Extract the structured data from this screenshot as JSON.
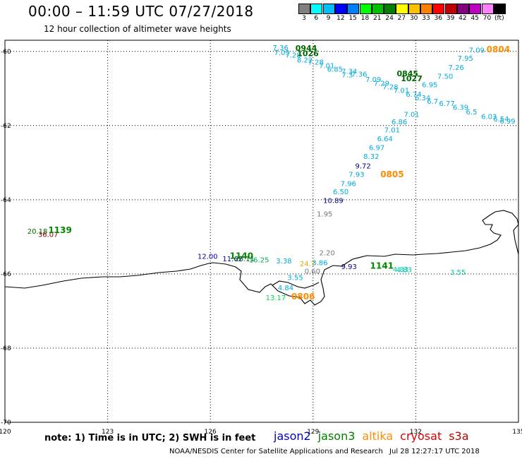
{
  "title": "00:00 – 11:59 UTC 07/27/2018",
  "subtitle": "12 hour collection of altimeter wave heights",
  "legend": {
    "colors": [
      "#808080",
      "#00ffff",
      "#00bfff",
      "#0000ff",
      "#0080ff",
      "#00ff00",
      "#00c000",
      "#008000",
      "#ffff00",
      "#ffc000",
      "#ff8000",
      "#ff0000",
      "#c00000",
      "#800080",
      "#c000c0",
      "#ff80ff",
      "#000000"
    ],
    "labels": [
      "3",
      "6",
      "9",
      "12",
      "15",
      "18",
      "21",
      "24",
      "27",
      "30",
      "33",
      "36",
      "39",
      "42",
      "45",
      "70",
      "(ft)"
    ]
  },
  "axes": {
    "lon_labels": [
      "120",
      "123",
      "126",
      "129",
      "132",
      "135"
    ],
    "lat_labels": [
      "-60",
      "-62",
      "-64",
      "-66",
      "-68",
      "-70"
    ]
  },
  "note": "note: 1) Time is in UTC; 2) SWH is in feet",
  "satellites": [
    {
      "name": "jason2",
      "color": "#0000cc"
    },
    {
      "name": "jason3",
      "color": "#008000"
    },
    {
      "name": "altika",
      "color": "#ff8c00"
    },
    {
      "name": "cryosat",
      "color": "#dd0000"
    },
    {
      "name": "s3a",
      "color": "#c00000"
    }
  ],
  "credit": "NOAA/NESDIS Center for Satellite Applications and Research",
  "timestamp": "Jul 28 12:27:17 UTC 2018",
  "swh_labels": [
    {
      "text": "7.36",
      "lon": 128.05,
      "lat": -59.97,
      "color": "#00aadd",
      "size": 10
    },
    {
      "text": "0944",
      "lon": 128.8,
      "lat": -59.99,
      "color": "#006600",
      "size": 11,
      "bold": true
    },
    {
      "text": "7.09",
      "lon": 128.09,
      "lat": -60.1,
      "color": "#00aadd",
      "size": 10
    },
    {
      "text": "7.28",
      "lon": 128.42,
      "lat": -60.17,
      "color": "#00aadd",
      "size": 10
    },
    {
      "text": "1026",
      "lon": 128.85,
      "lat": -60.13,
      "color": "#006600",
      "size": 11,
      "bold": true
    },
    {
      "text": "8.22",
      "lon": 128.76,
      "lat": -60.3,
      "color": "#00aadd",
      "size": 10
    },
    {
      "text": "7.28",
      "lon": 129.08,
      "lat": -60.36,
      "color": "#00aadd",
      "size": 10
    },
    {
      "text": "7.01",
      "lon": 129.4,
      "lat": -60.45,
      "color": "#00aadd",
      "size": 10
    },
    {
      "text": "6.85",
      "lon": 129.64,
      "lat": -60.55,
      "color": "#00aadd",
      "size": 10
    },
    {
      "text": "7.34",
      "lon": 130.06,
      "lat": -60.6,
      "color": "#00aadd",
      "size": 10
    },
    {
      "text": "7.3",
      "lon": 130.0,
      "lat": -60.7,
      "color": "#00aadd",
      "size": 10
    },
    {
      "text": "7.36",
      "lon": 130.35,
      "lat": -60.68,
      "color": "#00aadd",
      "size": 10
    },
    {
      "text": "0845",
      "lon": 131.76,
      "lat": -60.67,
      "color": "#006600",
      "size": 11,
      "bold": true
    },
    {
      "text": "7.09",
      "lon": 130.76,
      "lat": -60.82,
      "color": "#00aadd",
      "size": 10
    },
    {
      "text": "1027",
      "lon": 131.88,
      "lat": -60.8,
      "color": "#006600",
      "size": 11,
      "bold": true
    },
    {
      "text": "7.29",
      "lon": 131.0,
      "lat": -60.93,
      "color": "#00aadd",
      "size": 10
    },
    {
      "text": "7.28",
      "lon": 131.26,
      "lat": -61.02,
      "color": "#00aadd",
      "size": 10
    },
    {
      "text": "7.01",
      "lon": 131.58,
      "lat": -61.12,
      "color": "#00aadd",
      "size": 10
    },
    {
      "text": "6.74",
      "lon": 131.94,
      "lat": -61.22,
      "color": "#00aadd",
      "size": 10
    },
    {
      "text": "6.34",
      "lon": 132.2,
      "lat": -61.32,
      "color": "#00aadd",
      "size": 10
    },
    {
      "text": "6.7",
      "lon": 132.49,
      "lat": -61.41,
      "color": "#00aadd",
      "size": 10
    },
    {
      "text": "6.77",
      "lon": 132.91,
      "lat": -61.47,
      "color": "#00aadd",
      "size": 10
    },
    {
      "text": "6.39",
      "lon": 133.31,
      "lat": -61.58,
      "color": "#00aadd",
      "size": 10
    },
    {
      "text": "6.5",
      "lon": 133.63,
      "lat": -61.7,
      "color": "#00aadd",
      "size": 10
    },
    {
      "text": "6.03",
      "lon": 134.14,
      "lat": -61.82,
      "color": "#00aadd",
      "size": 10
    },
    {
      "text": "6.54",
      "lon": 134.49,
      "lat": -61.89,
      "color": "#00aadd",
      "size": 10
    },
    {
      "text": "6.99",
      "lon": 134.68,
      "lat": -61.95,
      "color": "#00aadd",
      "size": 10
    },
    {
      "text": "7.09",
      "lon": 133.78,
      "lat": -60.03,
      "color": "#00aadd",
      "size": 10
    },
    {
      "text": "0804",
      "lon": 134.41,
      "lat": -60.02,
      "color": "#ff8c00",
      "size": 12,
      "bold": true
    },
    {
      "text": "7.95",
      "lon": 133.45,
      "lat": -60.25,
      "color": "#00aadd",
      "size": 10
    },
    {
      "text": "7.26",
      "lon": 133.18,
      "lat": -60.5,
      "color": "#00aadd",
      "size": 10
    },
    {
      "text": "7.50",
      "lon": 132.86,
      "lat": -60.74,
      "color": "#00aadd",
      "size": 10
    },
    {
      "text": "6.95",
      "lon": 132.41,
      "lat": -60.97,
      "color": "#00aadd",
      "size": 10
    },
    {
      "text": "7.01",
      "lon": 131.88,
      "lat": -61.77,
      "color": "#00aadd",
      "size": 10
    },
    {
      "text": "6.86",
      "lon": 131.52,
      "lat": -61.97,
      "color": "#00aadd",
      "size": 10
    },
    {
      "text": "7.01",
      "lon": 131.31,
      "lat": -62.18,
      "color": "#00aadd",
      "size": 10
    },
    {
      "text": "6.64",
      "lon": 131.1,
      "lat": -62.42,
      "color": "#00aadd",
      "size": 10
    },
    {
      "text": "6.97",
      "lon": 130.86,
      "lat": -62.66,
      "color": "#00aadd",
      "size": 10
    },
    {
      "text": "8.32",
      "lon": 130.7,
      "lat": -62.9,
      "color": "#00aadd",
      "size": 10
    },
    {
      "text": "9.72",
      "lon": 130.46,
      "lat": -63.16,
      "color": "#000088",
      "size": 10
    },
    {
      "text": "7.93",
      "lon": 130.27,
      "lat": -63.38,
      "color": "#00aadd",
      "size": 10
    },
    {
      "text": "0805",
      "lon": 131.31,
      "lat": -63.39,
      "color": "#ff8c00",
      "size": 12,
      "bold": true
    },
    {
      "text": "7.96",
      "lon": 130.03,
      "lat": -63.63,
      "color": "#00aadd",
      "size": 10
    },
    {
      "text": "6.50",
      "lon": 129.81,
      "lat": -63.85,
      "color": "#00aadd",
      "size": 10
    },
    {
      "text": "10.89",
      "lon": 129.59,
      "lat": -64.09,
      "color": "#000088",
      "size": 10
    },
    {
      "text": "1.95",
      "lon": 129.34,
      "lat": -64.45,
      "color": "#777777",
      "size": 10
    },
    {
      "text": "20.18",
      "lon": 120.95,
      "lat": -64.92,
      "color": "#006600",
      "size": 10
    },
    {
      "text": "36.07",
      "lon": 121.26,
      "lat": -65.0,
      "color": "#880000",
      "size": 10
    },
    {
      "text": "1139",
      "lon": 121.61,
      "lat": -64.9,
      "color": "#008800",
      "size": 12,
      "bold": true
    },
    {
      "text": "12.00",
      "lon": 125.92,
      "lat": -65.59,
      "color": "#0000aa",
      "size": 10
    },
    {
      "text": "11.62",
      "lon": 126.65,
      "lat": -65.66,
      "color": "#000088",
      "size": 10
    },
    {
      "text": "1140",
      "lon": 126.91,
      "lat": -65.59,
      "color": "#008800",
      "size": 12,
      "bold": true
    },
    {
      "text": "20.11",
      "lon": 127.0,
      "lat": -65.66,
      "color": "#006600",
      "size": 10
    },
    {
      "text": "16.25",
      "lon": 127.42,
      "lat": -65.69,
      "color": "#00aa55",
      "size": 10
    },
    {
      "text": "3.38",
      "lon": 128.15,
      "lat": -65.72,
      "color": "#00aadd",
      "size": 10
    },
    {
      "text": "24.7",
      "lon": 128.84,
      "lat": -65.79,
      "color": "#ddaa00",
      "size": 10
    },
    {
      "text": "3.86",
      "lon": 129.2,
      "lat": -65.76,
      "color": "#00aadd",
      "size": 10
    },
    {
      "text": "2.20",
      "lon": 129.41,
      "lat": -65.5,
      "color": "#777777",
      "size": 10
    },
    {
      "text": "0.60",
      "lon": 128.98,
      "lat": -65.99,
      "color": "#777777",
      "size": 10
    },
    {
      "text": "9.93",
      "lon": 130.05,
      "lat": -65.87,
      "color": "#000088",
      "size": 10
    },
    {
      "text": "1141",
      "lon": 131.01,
      "lat": -65.86,
      "color": "#008800",
      "size": 12,
      "bold": true
    },
    {
      "text": "4.83",
      "lon": 131.56,
      "lat": -65.94,
      "color": "#00ccaa",
      "size": 10
    },
    {
      "text": "4.83",
      "lon": 131.66,
      "lat": -65.95,
      "color": "#00ccaa",
      "size": 10
    },
    {
      "text": "3.55",
      "lon": 133.23,
      "lat": -66.02,
      "color": "#00ccaa",
      "size": 10
    },
    {
      "text": "3.55",
      "lon": 128.48,
      "lat": -66.16,
      "color": "#00aadd",
      "size": 10
    },
    {
      "text": "4.84",
      "lon": 128.2,
      "lat": -66.44,
      "color": "#00aadd",
      "size": 10
    },
    {
      "text": "13.17",
      "lon": 127.91,
      "lat": -66.71,
      "color": "#00dd44",
      "size": 10
    },
    {
      "text": "0806",
      "lon": 128.71,
      "lat": -66.69,
      "color": "#ff8c00",
      "size": 12,
      "bold": true
    }
  ]
}
